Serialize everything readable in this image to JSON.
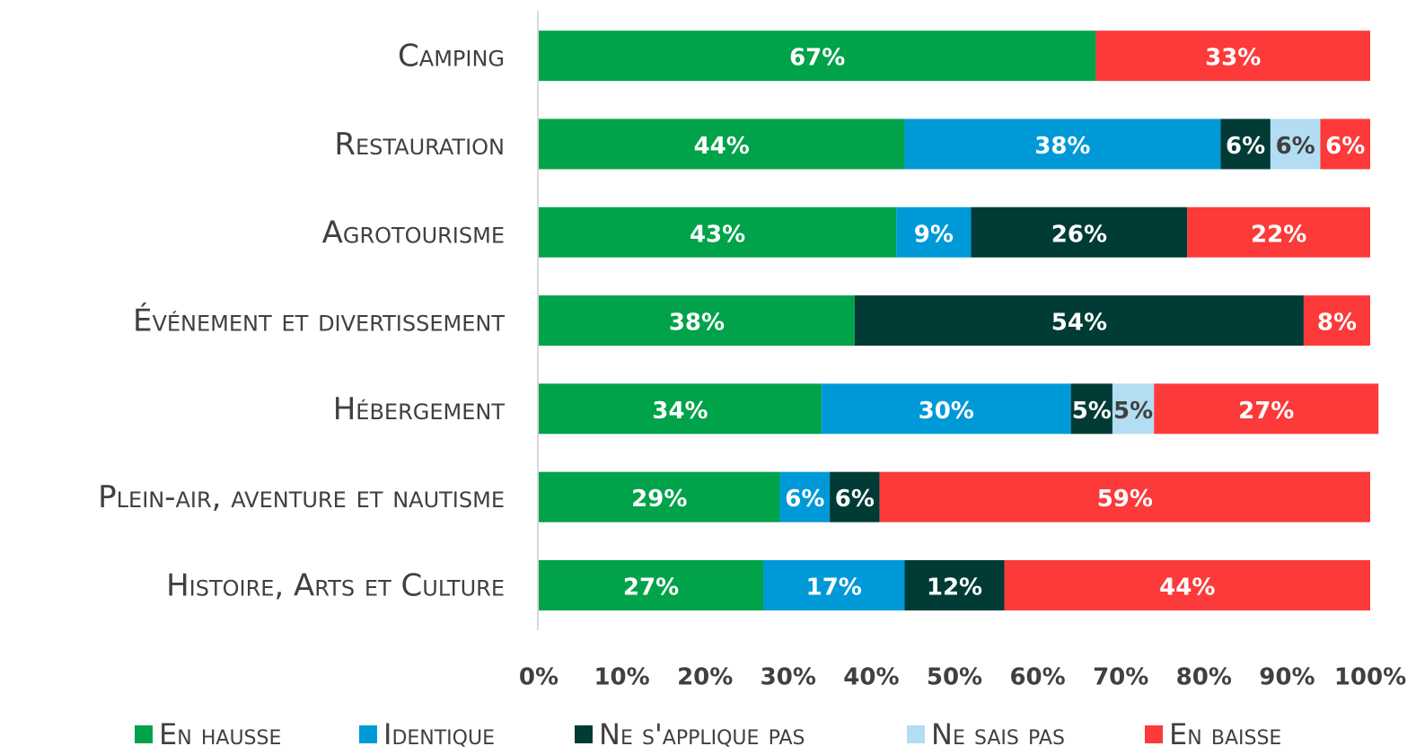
{
  "chart_data": {
    "type": "stacked_bar_horizontal",
    "categories": [
      "Camping",
      "Restauration",
      "Agrotourisme",
      "Événement et divertissement",
      "Hébergement",
      "Plein-air, aventure et nautisme",
      "Histoire, Arts et Culture"
    ],
    "series": [
      {
        "name": "En hausse",
        "color": "#00a24a",
        "values": [
          67,
          44,
          43,
          38,
          34,
          29,
          27
        ],
        "value_labels": [
          "67%",
          "44%",
          "43%",
          "38%",
          "34%",
          "29%",
          "27%"
        ]
      },
      {
        "name": "Identique",
        "color": "#0099d8",
        "values": [
          null,
          38,
          9,
          null,
          30,
          6,
          17
        ],
        "value_labels": [
          null,
          "38%",
          "9%",
          null,
          "30%",
          "6%",
          "17%"
        ]
      },
      {
        "name": "Ne s'applique pas",
        "color": "#003b36",
        "values": [
          null,
          6,
          26,
          54,
          5,
          6,
          12
        ],
        "value_labels": [
          null,
          "6%",
          "26%",
          "54%",
          "5%",
          "6%",
          "12%"
        ]
      },
      {
        "name": "Ne sais pas",
        "color": "#b3ddf2",
        "values": [
          null,
          6,
          null,
          null,
          5,
          null,
          null
        ],
        "value_labels": [
          null,
          "6%",
          null,
          null,
          "5%",
          null,
          null
        ]
      },
      {
        "name": "En baisse",
        "color": "#fc3a3a",
        "values": [
          33,
          6,
          22,
          8,
          27,
          59,
          44
        ],
        "value_labels": [
          "33%",
          "6%",
          "22%",
          "8%",
          "27%",
          "59%",
          "44%"
        ]
      }
    ],
    "xlim": [
      0,
      100
    ],
    "xticks": [
      {
        "value": 0,
        "label": "0%"
      },
      {
        "value": 10,
        "label": "10%"
      },
      {
        "value": 20,
        "label": "20%"
      },
      {
        "value": 30,
        "label": "30%"
      },
      {
        "value": 40,
        "label": "40%"
      },
      {
        "value": 50,
        "label": "50%"
      },
      {
        "value": 60,
        "label": "60%"
      },
      {
        "value": 70,
        "label": "70%"
      },
      {
        "value": 80,
        "label": "80%"
      },
      {
        "value": 90,
        "label": "90%"
      },
      {
        "value": 100,
        "label": "100%"
      }
    ],
    "legend": "bottom",
    "grid": false
  }
}
